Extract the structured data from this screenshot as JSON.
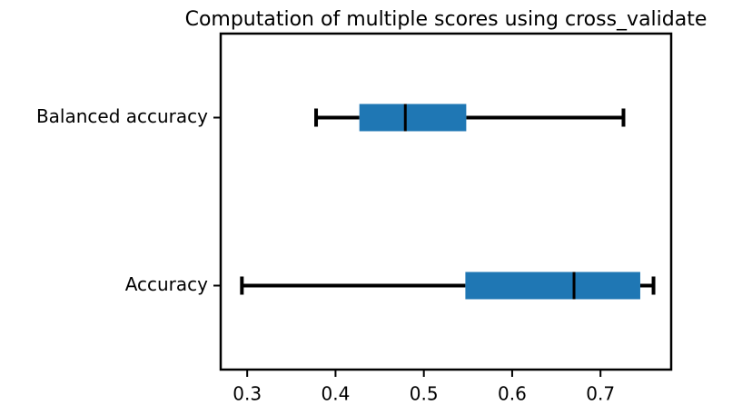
{
  "chart_data": {
    "type": "box",
    "title": "Computation of multiple scores using cross_validate",
    "categories": [
      "Accuracy",
      "Balanced accuracy"
    ],
    "stats": [
      {
        "min": 0.294,
        "q1": 0.547,
        "median": 0.67,
        "q3": 0.745,
        "max": 0.76
      },
      {
        "min": 0.378,
        "q1": 0.427,
        "median": 0.479,
        "q3": 0.548,
        "max": 0.726
      }
    ],
    "color": "#1f77b4",
    "xlim": [
      0.27,
      0.78
    ],
    "xticks": [
      0.3,
      0.4,
      0.5,
      0.6,
      0.7
    ]
  }
}
